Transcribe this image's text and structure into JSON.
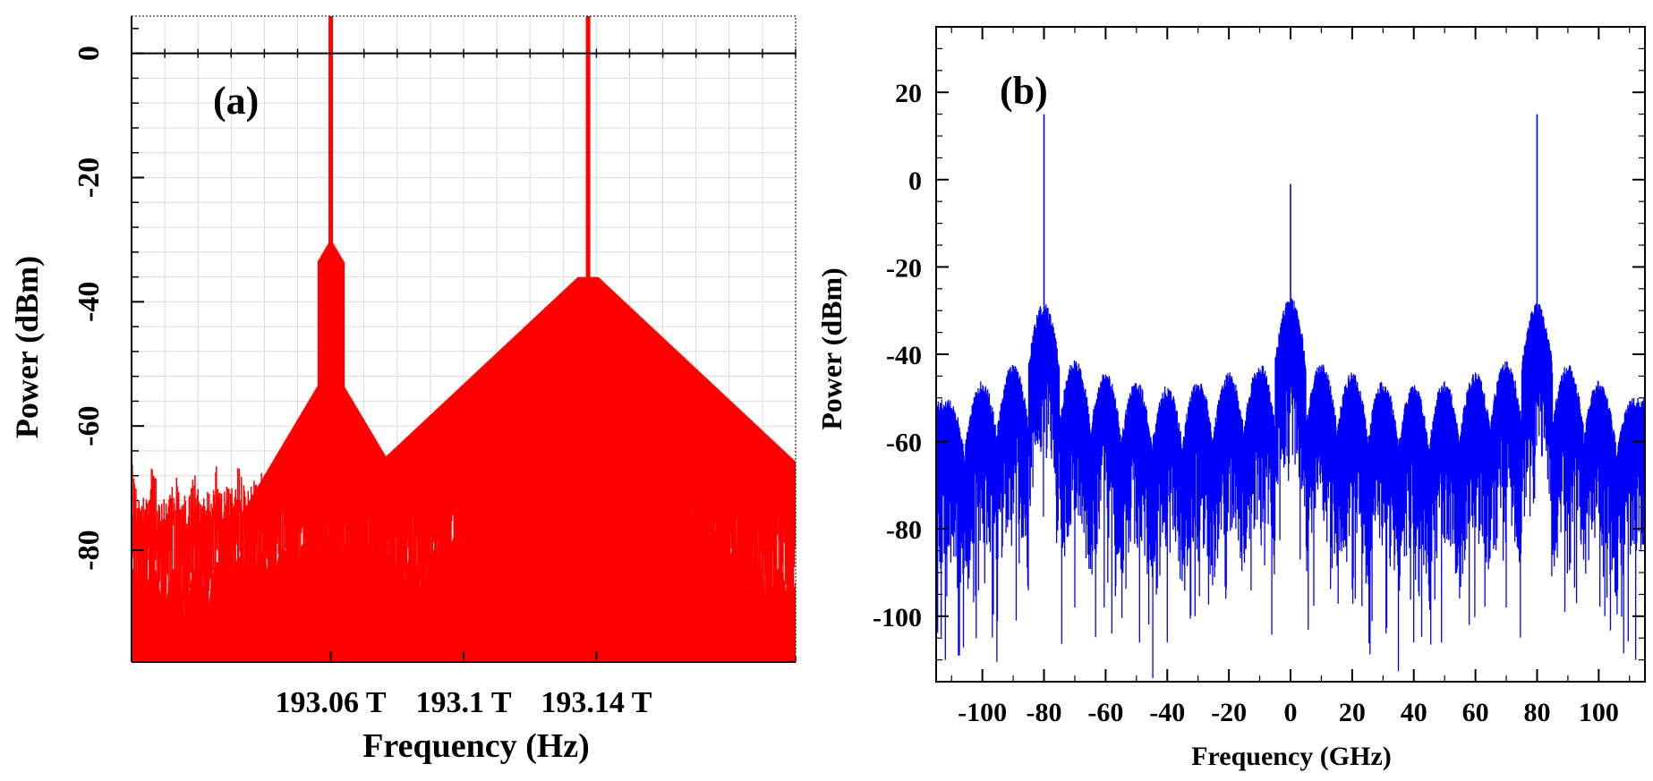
{
  "chart_data": [
    {
      "id": "a",
      "type": "line",
      "panel_label": "(a)",
      "title": "",
      "xlabel": "Frequency (Hz)",
      "ylabel": "Power (dBm)",
      "x_unit": "THz",
      "xlim": [
        193.0,
        193.2
      ],
      "ylim": [
        -98,
        6
      ],
      "grid": true,
      "legend": "none",
      "line_color": "#ff0000",
      "x_ticks": [
        {
          "value": 193.06,
          "label": "193.06 T"
        },
        {
          "value": 193.1,
          "label": "193.1 T"
        },
        {
          "value": 193.14,
          "label": "193.14 T"
        }
      ],
      "y_ticks": [
        {
          "value": 0,
          "label": "0"
        },
        {
          "value": -20,
          "label": "-20"
        },
        {
          "value": -40,
          "label": "-40"
        },
        {
          "value": -60,
          "label": "-60"
        },
        {
          "value": -80,
          "label": "-80"
        }
      ],
      "carriers": [
        {
          "x": 193.06,
          "peak": 6,
          "envelope": -66
        },
        {
          "x": 193.1375,
          "peak": 6,
          "envelope": -51
        }
      ],
      "sidelobe_period": 0.0065,
      "noise_floor": -98,
      "reference_line": 0
    },
    {
      "id": "b",
      "type": "line",
      "panel_label": "(b)",
      "title": "",
      "xlabel": "Frequency (GHz)",
      "ylabel": "Power (dBm)",
      "x_unit": "GHz",
      "xlim": [
        -115,
        115
      ],
      "ylim": [
        -115,
        35
      ],
      "grid": false,
      "legend": "none",
      "line_color": "#0000ff",
      "x_ticks": [
        {
          "value": -100,
          "label": "-100"
        },
        {
          "value": -80,
          "label": "-80"
        },
        {
          "value": -60,
          "label": "-60"
        },
        {
          "value": -40,
          "label": "-40"
        },
        {
          "value": -20,
          "label": "-20"
        },
        {
          "value": 0,
          "label": "0"
        },
        {
          "value": 20,
          "label": "20"
        },
        {
          "value": 40,
          "label": "40"
        },
        {
          "value": 60,
          "label": "60"
        },
        {
          "value": 80,
          "label": "80"
        },
        {
          "value": 100,
          "label": "100"
        }
      ],
      "y_ticks": [
        {
          "value": 20,
          "label": "20"
        },
        {
          "value": 0,
          "label": "0"
        },
        {
          "value": -20,
          "label": "-20"
        },
        {
          "value": -40,
          "label": "-40"
        },
        {
          "value": -60,
          "label": "-60"
        },
        {
          "value": -80,
          "label": "-80"
        },
        {
          "value": -100,
          "label": "-100"
        }
      ],
      "carriers": [
        {
          "x": -80,
          "peak": 15
        },
        {
          "x": 0,
          "peak": -1
        },
        {
          "x": 80,
          "peak": 15
        }
      ],
      "lobe_peaks": [
        {
          "x": -111,
          "value": -50
        },
        {
          "x": -100,
          "value": -46
        },
        {
          "x": -90,
          "value": -42
        },
        {
          "x": -80,
          "value": -28
        },
        {
          "x": -70,
          "value": -41
        },
        {
          "x": -60,
          "value": -44
        },
        {
          "x": -50,
          "value": -46
        },
        {
          "x": -40,
          "value": -47
        },
        {
          "x": -30,
          "value": -46
        },
        {
          "x": -20,
          "value": -44
        },
        {
          "x": -10,
          "value": -42
        },
        {
          "x": 0,
          "value": -27
        },
        {
          "x": 10,
          "value": -42
        },
        {
          "x": 20,
          "value": -44
        },
        {
          "x": 30,
          "value": -46
        },
        {
          "x": 40,
          "value": -47
        },
        {
          "x": 50,
          "value": -46
        },
        {
          "x": 60,
          "value": -44
        },
        {
          "x": 70,
          "value": -41
        },
        {
          "x": 80,
          "value": -28
        },
        {
          "x": 90,
          "value": -42
        },
        {
          "x": 100,
          "value": -46
        },
        {
          "x": 111,
          "value": -50
        }
      ],
      "nulls": [
        {
          "x": -112,
          "value": -110
        },
        {
          "x": -102,
          "value": -105
        },
        {
          "x": -89,
          "value": -101
        },
        {
          "x": -70,
          "value": -98
        },
        {
          "x": -58,
          "value": -104
        },
        {
          "x": -49,
          "value": -106
        },
        {
          "x": -40,
          "value": -106
        },
        {
          "x": -31,
          "value": -100
        },
        {
          "x": -21,
          "value": -96
        },
        {
          "x": 21,
          "value": -96
        },
        {
          "x": 31,
          "value": -104
        },
        {
          "x": 40,
          "value": -106
        },
        {
          "x": 49,
          "value": -106
        },
        {
          "x": 58,
          "value": -102
        },
        {
          "x": 70,
          "value": -98
        },
        {
          "x": 89,
          "value": -99
        },
        {
          "x": 102,
          "value": -100
        },
        {
          "x": 112,
          "value": -110
        }
      ]
    }
  ]
}
